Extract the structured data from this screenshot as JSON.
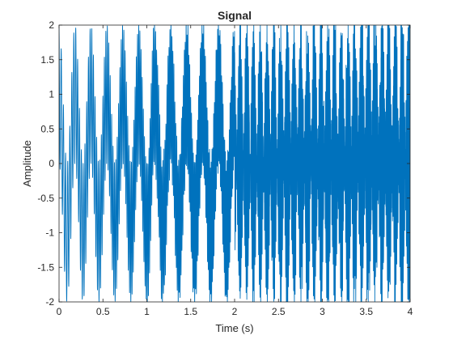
{
  "chart_data": {
    "type": "line",
    "title": "Signal",
    "xlabel": "Time (s)",
    "ylabel": "Amplitude",
    "xlim": [
      0,
      4
    ],
    "ylim": [
      -2,
      2
    ],
    "xticks": [
      0,
      0.5,
      1,
      1.5,
      2,
      2.5,
      3,
      3.5,
      4
    ],
    "xtick_labels": [
      "0",
      "0.5",
      "1",
      "1.5",
      "2",
      "2.5",
      "3",
      "3.5",
      "4"
    ],
    "yticks": [
      -2,
      -1.5,
      -1,
      -0.5,
      0,
      0.5,
      1,
      1.5,
      2
    ],
    "ytick_labels": [
      "-2",
      "-1.5",
      "-1",
      "-0.5",
      "0",
      "0.5",
      "1",
      "1.5",
      "2"
    ],
    "grid": false,
    "series": [
      {
        "color": "#0072BD",
        "segments": [
          {
            "t_start": 0,
            "t_end": 2,
            "envelope_cycles_per_second": 5.5,
            "description_level": "amplitude between -2 and 2"
          },
          {
            "t_start": 2,
            "t_end": 4,
            "description_level": "dense oscillation filling -2 to 2"
          }
        ]
      }
    ]
  }
}
